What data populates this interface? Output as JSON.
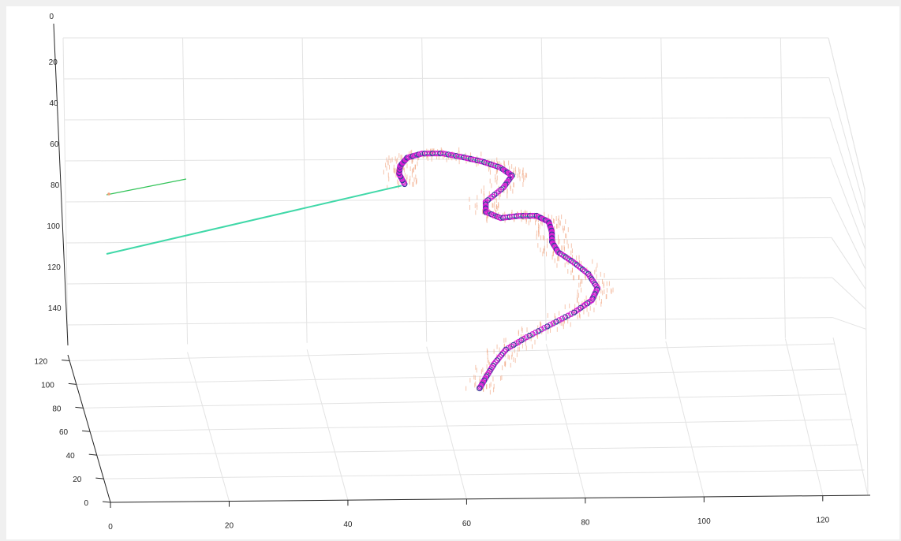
{
  "chart_data": {
    "type": "scatter",
    "title": "",
    "xlabel": "",
    "ylabel": "",
    "zlabel": "",
    "grid": true,
    "legend": "none",
    "axes": {
      "z_ticks": [
        "0",
        "20",
        "40",
        "60",
        "80",
        "100",
        "120",
        "140"
      ],
      "y_ticks": [
        "0",
        "20",
        "40",
        "60",
        "80",
        "100",
        "120"
      ],
      "x_ticks": [
        "0",
        "20",
        "40",
        "60",
        "80",
        "100",
        "120"
      ],
      "xlim": [
        0,
        125
      ],
      "ylim": [
        0,
        125
      ],
      "zlim": [
        0,
        150
      ]
    },
    "colors": {
      "marker": "#d31bd3",
      "marker_edge": "#3a3a9a",
      "fit_line": "#40d8a8",
      "short_line": "#34c45a",
      "point_cloud": "#f0a07a",
      "background": "#ffffff"
    },
    "series": [
      {
        "type": "line",
        "points": [
          [
            -0.5,
            58,
            73
          ],
          [
            47.8,
            58,
            73
          ]
        ]
      },
      {
        "type": "line",
        "points": [
          [
            -0.5,
            110,
            80
          ],
          [
            12.5,
            110,
            80
          ]
        ]
      },
      {
        "type": "scatter",
        "marker": "circle",
        "points": [
          [
            47.5,
            58,
            72
          ],
          [
            46.6,
            58,
            67
          ],
          [
            46.8,
            58,
            63
          ],
          [
            48.0,
            58,
            59
          ],
          [
            50.5,
            58,
            57
          ],
          [
            54.0,
            58,
            57
          ],
          [
            57.5,
            58,
            59
          ],
          [
            60.5,
            58,
            61
          ],
          [
            63.5,
            58,
            64
          ],
          [
            65.5,
            58,
            68
          ],
          [
            64.0,
            58,
            74
          ],
          [
            61.0,
            58,
            81
          ],
          [
            61.0,
            58,
            86
          ],
          [
            63.5,
            58,
            89
          ],
          [
            66.5,
            58,
            88
          ],
          [
            69.5,
            58,
            88
          ],
          [
            71.5,
            58,
            91
          ],
          [
            72.0,
            58,
            96
          ],
          [
            72.0,
            58,
            101
          ],
          [
            73.0,
            58,
            106
          ],
          [
            75.5,
            58,
            111
          ],
          [
            78.0,
            58,
            117
          ],
          [
            79.5,
            58,
            124
          ],
          [
            78.5,
            58,
            130
          ],
          [
            75.5,
            58,
            136
          ],
          [
            71.5,
            58,
            142
          ],
          [
            67.5,
            58,
            148
          ],
          [
            64.0,
            58,
            154
          ],
          [
            62.0,
            58,
            161
          ],
          [
            60.5,
            58,
            168
          ],
          [
            59.5,
            58,
            173
          ]
        ]
      }
    ]
  }
}
